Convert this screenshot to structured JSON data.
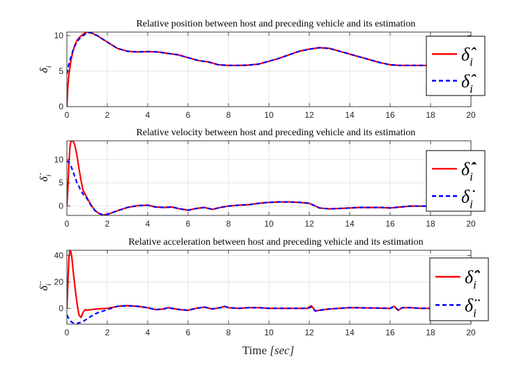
{
  "chart_data": [
    {
      "type": "line",
      "title": "Relative position between host and preceding vehicle and its estimation",
      "ylabel": "δ_i",
      "xlabel": "",
      "xlim": [
        0,
        20
      ],
      "ylim": [
        0,
        10.5
      ],
      "xticks": [
        0,
        2,
        4,
        6,
        8,
        10,
        12,
        14,
        16,
        18,
        20
      ],
      "yticks": [
        0,
        5,
        10
      ],
      "grid": true,
      "legend": "right",
      "series": [
        {
          "name": "δ̂_i",
          "color": "#ff0000",
          "style": "solid",
          "x": [
            0,
            0.05,
            0.1,
            0.2,
            0.3,
            0.4,
            0.5,
            0.6,
            0.8,
            1.0,
            1.2,
            1.5,
            2.0,
            2.5,
            3.0,
            3.5,
            4.0,
            4.5,
            5.0,
            5.5,
            6.0,
            6.5,
            7.0,
            7.5,
            8.0,
            8.5,
            9.0,
            9.5,
            10.0,
            10.5,
            11.0,
            11.5,
            12.0,
            12.5,
            13.0,
            13.5,
            14.0,
            14.5,
            15.0,
            15.5,
            16.0,
            16.5,
            17.0,
            17.5,
            18.0
          ],
          "y": [
            0,
            3.0,
            4.5,
            6.5,
            7.8,
            8.7,
            9.3,
            9.7,
            10.2,
            10.5,
            10.4,
            10.0,
            9.1,
            8.2,
            7.8,
            7.7,
            7.75,
            7.7,
            7.5,
            7.3,
            6.9,
            6.5,
            6.3,
            5.9,
            5.8,
            5.8,
            5.85,
            6.0,
            6.4,
            6.8,
            7.3,
            7.8,
            8.1,
            8.3,
            8.2,
            7.8,
            7.4,
            7.0,
            6.6,
            6.2,
            5.9,
            5.8,
            5.8,
            5.8,
            5.8
          ]
        },
        {
          "name": "δ̂_i",
          "color": "#0000ff",
          "style": "dashed",
          "x": [
            0,
            0.1,
            0.2,
            0.3,
            0.4,
            0.5,
            0.6,
            0.8,
            1.0,
            1.2,
            1.5,
            2.0,
            2.5,
            3.0,
            3.5,
            4.0,
            4.5,
            5.0,
            5.5,
            6.0,
            6.5,
            7.0,
            7.5,
            8.0,
            8.5,
            9.0,
            9.5,
            10.0,
            10.5,
            11.0,
            11.5,
            12.0,
            12.5,
            13.0,
            13.5,
            14.0,
            14.5,
            15.0,
            15.5,
            16.0,
            16.5,
            17.0,
            17.5,
            18.0
          ],
          "y": [
            4.6,
            6.0,
            7.0,
            7.9,
            8.6,
            9.1,
            9.5,
            10.0,
            10.4,
            10.4,
            10.0,
            9.1,
            8.2,
            7.8,
            7.7,
            7.75,
            7.7,
            7.5,
            7.3,
            6.9,
            6.5,
            6.3,
            5.9,
            5.8,
            5.8,
            5.85,
            6.0,
            6.4,
            6.8,
            7.3,
            7.8,
            8.1,
            8.3,
            8.2,
            7.8,
            7.4,
            7.0,
            6.6,
            6.2,
            5.9,
            5.8,
            5.8,
            5.8,
            5.8
          ]
        }
      ]
    },
    {
      "type": "line",
      "title": "Relative velocity between host and preceding vehicle and its estimation",
      "ylabel": "δ̇_i",
      "xlabel": "",
      "xlim": [
        0,
        20
      ],
      "ylim": [
        -2,
        14
      ],
      "xticks": [
        0,
        2,
        4,
        6,
        8,
        10,
        12,
        14,
        16,
        18,
        20
      ],
      "yticks": [
        0,
        5,
        10
      ],
      "grid": true,
      "legend": "right",
      "series": [
        {
          "name": "δ̂̇_i",
          "color": "#ff0000",
          "style": "solid",
          "x": [
            0,
            0.05,
            0.1,
            0.15,
            0.2,
            0.3,
            0.4,
            0.5,
            0.6,
            0.7,
            0.8,
            1.0,
            1.2,
            1.4,
            1.6,
            1.8,
            2.0,
            2.5,
            3.0,
            3.5,
            4.0,
            4.4,
            4.8,
            5.2,
            5.6,
            6.0,
            6.4,
            6.8,
            7.2,
            7.6,
            8.0,
            8.5,
            9.0,
            9.5,
            10.0,
            10.5,
            11.0,
            11.5,
            12.0,
            12.5,
            13.0,
            13.5,
            14.0,
            14.5,
            15.0,
            15.5,
            16.0,
            16.5,
            17.0,
            17.5,
            18.0
          ],
          "y": [
            0,
            4.0,
            9.0,
            12.5,
            13.9,
            14.0,
            13.0,
            10.8,
            8.0,
            5.5,
            3.4,
            1.8,
            0.2,
            -1.0,
            -1.6,
            -1.9,
            -1.8,
            -1.0,
            -0.3,
            0.1,
            0.2,
            -0.2,
            -0.3,
            -0.2,
            -0.6,
            -0.9,
            -0.5,
            -0.3,
            -0.7,
            -0.3,
            0.0,
            0.2,
            0.3,
            0.6,
            0.8,
            0.9,
            0.9,
            0.8,
            0.6,
            -0.4,
            -0.6,
            -0.5,
            -0.4,
            -0.3,
            -0.3,
            -0.3,
            -0.4,
            -0.2,
            0.0,
            0.0,
            0.0
          ]
        },
        {
          "name": "δ̇_i",
          "color": "#0000ff",
          "style": "dashed",
          "x": [
            0,
            0.1,
            0.2,
            0.3,
            0.4,
            0.5,
            0.6,
            0.7,
            0.8,
            1.0,
            1.2,
            1.4,
            1.6,
            1.8,
            2.0,
            2.5,
            3.0,
            3.5,
            4.0,
            4.4,
            4.8,
            5.2,
            5.6,
            6.0,
            6.4,
            6.8,
            7.2,
            7.6,
            8.0,
            8.5,
            9.0,
            9.5,
            10.0,
            10.5,
            11.0,
            11.5,
            12.0,
            12.5,
            13.0,
            13.5,
            14.0,
            14.5,
            15.0,
            15.5,
            16.0,
            16.5,
            17.0,
            17.5,
            18.0
          ],
          "y": [
            9.8,
            9.3,
            8.6,
            7.5,
            6.2,
            5.0,
            4.2,
            3.2,
            2.6,
            1.6,
            0.1,
            -1.0,
            -1.6,
            -1.9,
            -1.8,
            -1.0,
            -0.3,
            0.1,
            0.2,
            -0.2,
            -0.3,
            -0.2,
            -0.6,
            -0.9,
            -0.5,
            -0.3,
            -0.7,
            -0.3,
            0.0,
            0.2,
            0.3,
            0.6,
            0.8,
            0.9,
            0.9,
            0.8,
            0.6,
            -0.4,
            -0.6,
            -0.5,
            -0.4,
            -0.3,
            -0.3,
            -0.3,
            -0.4,
            -0.2,
            0.0,
            0.0,
            0.0
          ]
        }
      ]
    },
    {
      "type": "line",
      "title": "Relative acceleration between host and preceding vehicle and its estimation",
      "ylabel": "δ̈_i",
      "xlabel": "Time [sec]",
      "xlim": [
        0,
        20
      ],
      "ylim": [
        -12,
        44
      ],
      "xticks": [
        0,
        2,
        4,
        6,
        8,
        10,
        12,
        14,
        16,
        18,
        20
      ],
      "yticks": [
        0,
        20,
        40
      ],
      "grid": true,
      "legend": "right",
      "series": [
        {
          "name": "δ̂̈_i",
          "color": "#ff0000",
          "style": "solid",
          "x": [
            0,
            0.05,
            0.1,
            0.15,
            0.2,
            0.25,
            0.3,
            0.4,
            0.5,
            0.6,
            0.7,
            0.8,
            0.9,
            1.0,
            1.2,
            1.5,
            2.0,
            2.5,
            3.0,
            3.5,
            4.0,
            4.4,
            4.8,
            5.0,
            5.2,
            5.6,
            6.0,
            6.4,
            6.8,
            7.2,
            7.6,
            7.8,
            8.0,
            8.5,
            9.0,
            9.5,
            10.0,
            10.5,
            11.0,
            11.5,
            11.9,
            12.1,
            12.3,
            12.5,
            13.0,
            14.0,
            15.0,
            16.0,
            16.2,
            16.4,
            16.6,
            17.0,
            17.5,
            18.0
          ],
          "y": [
            0,
            20.0,
            38.0,
            44.0,
            43.0,
            38.0,
            30.0,
            16.0,
            4.0,
            -5.0,
            -7.0,
            -3.0,
            -1.0,
            -1.5,
            -1.0,
            -0.5,
            0.0,
            1.5,
            2.0,
            1.5,
            0.5,
            -1.0,
            -0.5,
            0.5,
            0.0,
            -1.0,
            -1.5,
            0.0,
            1.0,
            -0.5,
            0.5,
            1.5,
            0.5,
            0.0,
            0.5,
            0.5,
            0.0,
            0.0,
            0.0,
            0.0,
            0.0,
            2.0,
            -2.0,
            -1.5,
            -0.5,
            0.5,
            0.3,
            0.0,
            1.5,
            -1.5,
            0.5,
            0.5,
            0.0,
            0.0
          ]
        },
        {
          "name": "δ̈_i",
          "color": "#0000ff",
          "style": "dashed",
          "x": [
            0,
            0.1,
            0.2,
            0.3,
            0.5,
            0.8,
            1.0,
            1.2,
            1.5,
            2.0,
            2.5,
            3.0,
            3.5,
            4.0,
            4.4,
            4.8,
            5.0,
            5.2,
            5.6,
            6.0,
            6.4,
            6.8,
            7.2,
            7.6,
            7.8,
            8.0,
            8.5,
            9.0,
            9.5,
            10.0,
            10.5,
            11.0,
            11.5,
            11.9,
            12.1,
            12.3,
            12.5,
            13.0,
            14.0,
            15.0,
            16.0,
            16.2,
            16.4,
            16.6,
            17.0,
            17.5,
            18.0
          ],
          "y": [
            -5.0,
            -8.0,
            -10.0,
            -11.0,
            -11.5,
            -10.0,
            -8.0,
            -6.0,
            -3.5,
            -1.0,
            1.5,
            2.0,
            1.5,
            0.5,
            -1.0,
            -0.5,
            0.5,
            0.0,
            -1.0,
            -1.5,
            0.0,
            1.0,
            -0.5,
            0.5,
            1.5,
            0.5,
            0.0,
            0.5,
            0.5,
            0.0,
            0.0,
            0.0,
            0.0,
            0.0,
            1.0,
            -2.0,
            -1.5,
            -0.5,
            0.5,
            0.3,
            0.0,
            1.5,
            -1.5,
            0.5,
            0.5,
            0.0,
            0.0
          ]
        }
      ]
    }
  ]
}
